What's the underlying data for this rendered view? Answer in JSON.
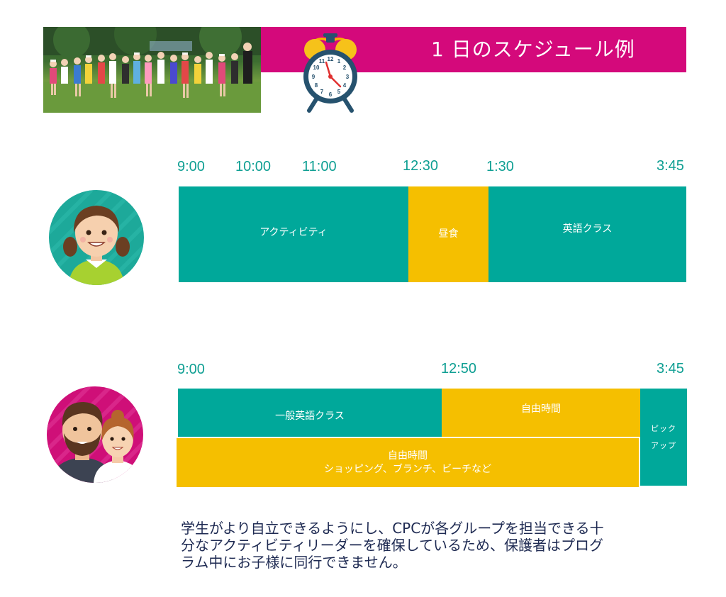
{
  "header": {
    "title": "1 日のスケジュール例"
  },
  "schedules": [
    {
      "times": [
        "9:00",
        "10:00",
        "11:00",
        "12:30",
        "1:30",
        "3:45"
      ],
      "segments": [
        {
          "label": "アクティビティ",
          "color": "#00a89a"
        },
        {
          "label": "昼食",
          "color": "#f5bf00"
        },
        {
          "label": "英語クラス",
          "color": "#00a89a"
        }
      ]
    },
    {
      "times": [
        "9:00",
        "12:50",
        "3:45"
      ],
      "segments": [
        {
          "label": "一般英語クラス",
          "color": "#00a89a"
        },
        {
          "label": "自由時間",
          "color": "#f5bf00"
        },
        {
          "line1": "自由時間",
          "line2": "ショッピング、ブランチ、ビーチなど",
          "color": "#f5bf00"
        },
        {
          "line1": "ピック",
          "line2": "アップ",
          "color": "#00a89a"
        }
      ]
    }
  ],
  "note": {
    "lines": [
      "学生がより自立できるようにし、CPCが各グループを担当できる十",
      "分なアクティビティリーダーを確保しているため、保護者はプログ",
      "ラム中にお子様に同行できません。"
    ]
  },
  "colors": {
    "banner": "#d4097b",
    "teal": "#00a89a",
    "yellow": "#f5bf00",
    "time_text": "#0f9f93",
    "note_text": "#1e2a52"
  },
  "icons": [
    "group-photo",
    "alarm-clock-icon",
    "child-avatar-icon",
    "parents-avatar-icon"
  ]
}
